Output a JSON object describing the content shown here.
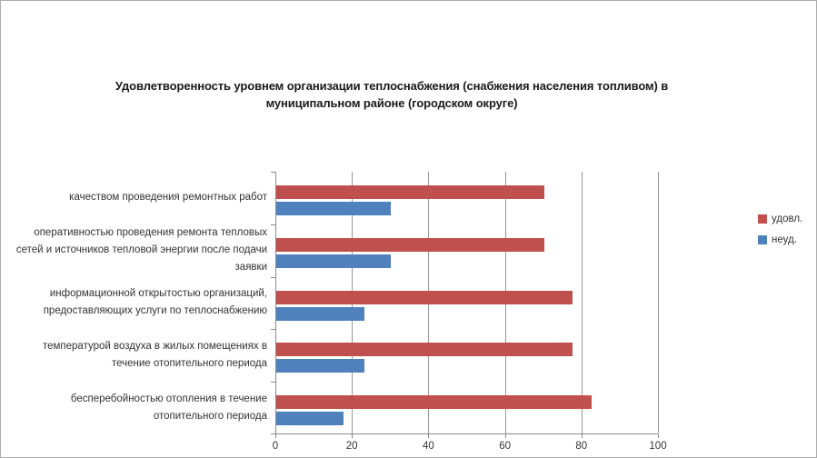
{
  "window": {
    "background": "#ffffff",
    "border_color": "#acacac"
  },
  "chart_data": {
    "type": "bar",
    "orientation": "horizontal",
    "title": "Удовлетворенность уровнем организации теплоснабжения (снабжения населения топливом) в муниципальном районе (городском округе)",
    "categories": [
      "качеством проведения ремонтных работ",
      "оперативностью проведения ремонта тепловых сетей и источников тепловой энергии после подачи заявки",
      "информационной открытостью организаций, предоставляющих услуги по теплоснабжению",
      "температурой воздуха в жилых помещениях в течение отопительного периода",
      "бесперебойностью отопления в течение отопительного периода"
    ],
    "series": [
      {
        "name": "удовл.",
        "color": "#c0504d",
        "values": [
          70,
          70,
          77.5,
          77.5,
          82.5
        ]
      },
      {
        "name": "неуд.",
        "color": "#4f81bd",
        "values": [
          30,
          30,
          23,
          23,
          17.5
        ]
      }
    ],
    "xlabel": "",
    "ylabel": "",
    "xlim": [
      0,
      100
    ],
    "x_ticks": [
      0,
      20,
      40,
      60,
      80,
      100
    ],
    "grid": true,
    "legend_position": "right",
    "colors": {
      "axis": "#8a8a8a",
      "gridline": "#979797",
      "text": "#333333",
      "title": "#1a1a1a"
    }
  }
}
